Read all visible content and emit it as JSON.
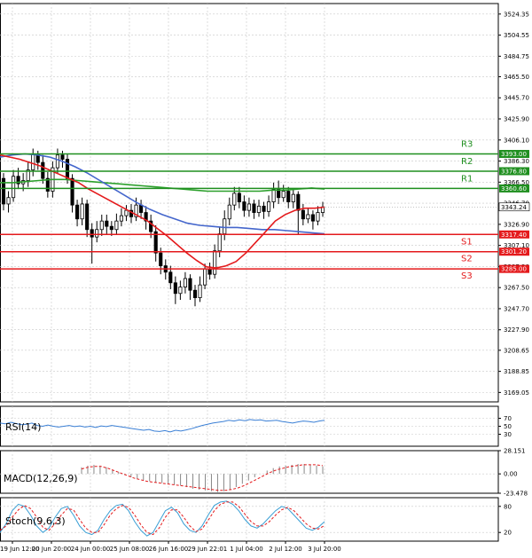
{
  "chart_data": {
    "type": "candlestick",
    "colors": {
      "up": "#ffffff",
      "down": "#000000",
      "wick": "#000000",
      "ma_fast": "#e41a1c",
      "ma_mid": "#2ca02c",
      "ma_slow": "#4466cc",
      "support": "#e41a1c",
      "resistance": "#1f8f1f",
      "grid": "#c8c8c8",
      "rsi": "#3a7fd5",
      "macd_signal": "#e41a1c",
      "macd_hist": "#888888",
      "stoch_k": "#3a9fd5",
      "stoch_d": "#e41a1c"
    },
    "price_axis": {
      "ylim": [
        3160.2,
        3534.2
      ],
      "ticks": [
        "3524.35",
        "3504.55",
        "3484.75",
        "3465.50",
        "3445.70",
        "3425.90",
        "3406.10",
        "3386.30",
        "3366.50",
        "3346.70",
        "3326.90",
        "3307.10",
        "3287.30",
        "3267.50",
        "3247.70",
        "3227.90",
        "3208.65",
        "3188.85",
        "3169.05"
      ],
      "current_price": "3343.24"
    },
    "time_labels": [
      "19 Jun 12:00",
      "20 Jun 20:00",
      "24 Jun 00:00",
      "25 Jun 08:00",
      "26 Jun 16:00",
      "29 Jun 22:01",
      "1 Jul 04:00",
      "2 Jul 12:00",
      "3 Jul 20:00"
    ],
    "levels": [
      {
        "name": "R3",
        "value": 3393.0,
        "label": "3393.00",
        "kind": "resistance"
      },
      {
        "name": "R2",
        "value": 3376.8,
        "label": "3376.80",
        "kind": "resistance"
      },
      {
        "name": "R1",
        "value": 3360.6,
        "label": "3360.60",
        "kind": "resistance"
      },
      {
        "name": "S1",
        "value": 3317.4,
        "label": "3317.40",
        "kind": "support"
      },
      {
        "name": "S2",
        "value": 3301.2,
        "label": "3301.20",
        "kind": "support"
      },
      {
        "name": "S3",
        "value": 3285.0,
        "label": "3285.00",
        "kind": "support"
      }
    ],
    "candles": [
      [
        3370,
        3346,
        3375,
        3340
      ],
      [
        3346,
        3352,
        3358,
        3338
      ],
      [
        3352,
        3372,
        3378,
        3348
      ],
      [
        3372,
        3365,
        3380,
        3360
      ],
      [
        3365,
        3368,
        3375,
        3358
      ],
      [
        3368,
        3378,
        3386,
        3362
      ],
      [
        3378,
        3393,
        3398,
        3372
      ],
      [
        3393,
        3385,
        3396,
        3378
      ],
      [
        3385,
        3370,
        3392,
        3365
      ],
      [
        3370,
        3358,
        3376,
        3352
      ],
      [
        3358,
        3380,
        3386,
        3352
      ],
      [
        3380,
        3392,
        3398,
        3375
      ],
      [
        3392,
        3388,
        3396,
        3380
      ],
      [
        3388,
        3370,
        3393,
        3365
      ],
      [
        3370,
        3345,
        3374,
        3338
      ],
      [
        3345,
        3332,
        3350,
        3325
      ],
      [
        3332,
        3346,
        3352,
        3326
      ],
      [
        3346,
        3322,
        3350,
        3315
      ],
      [
        3322,
        3315,
        3328,
        3290
      ],
      [
        3315,
        3322,
        3330,
        3310
      ],
      [
        3322,
        3330,
        3336,
        3316
      ],
      [
        3330,
        3325,
        3336,
        3318
      ],
      [
        3325,
        3322,
        3330,
        3316
      ],
      [
        3322,
        3330,
        3337,
        3318
      ],
      [
        3330,
        3335,
        3342,
        3325
      ],
      [
        3335,
        3340,
        3345,
        3330
      ],
      [
        3340,
        3334,
        3346,
        3328
      ],
      [
        3334,
        3345,
        3352,
        3330
      ],
      [
        3345,
        3338,
        3350,
        3332
      ],
      [
        3338,
        3330,
        3344,
        3322
      ],
      [
        3330,
        3320,
        3336,
        3314
      ],
      [
        3320,
        3300,
        3326,
        3292
      ],
      [
        3300,
        3288,
        3305,
        3280
      ],
      [
        3288,
        3282,
        3294,
        3275
      ],
      [
        3282,
        3272,
        3288,
        3266
      ],
      [
        3272,
        3262,
        3278,
        3252
      ],
      [
        3262,
        3268,
        3274,
        3256
      ],
      [
        3268,
        3276,
        3282,
        3262
      ],
      [
        3276,
        3265,
        3280,
        3256
      ],
      [
        3265,
        3258,
        3270,
        3250
      ],
      [
        3258,
        3270,
        3278,
        3254
      ],
      [
        3270,
        3285,
        3290,
        3266
      ],
      [
        3285,
        3280,
        3291,
        3275
      ],
      [
        3280,
        3302,
        3308,
        3276
      ],
      [
        3302,
        3318,
        3324,
        3296
      ],
      [
        3318,
        3332,
        3340,
        3312
      ],
      [
        3332,
        3345,
        3352,
        3326
      ],
      [
        3345,
        3356,
        3362,
        3340
      ],
      [
        3356,
        3348,
        3362,
        3342
      ],
      [
        3348,
        3340,
        3354,
        3334
      ],
      [
        3340,
        3346,
        3352,
        3334
      ],
      [
        3346,
        3338,
        3350,
        3332
      ],
      [
        3338,
        3344,
        3350,
        3334
      ],
      [
        3344,
        3339,
        3348,
        3332
      ],
      [
        3339,
        3348,
        3354,
        3334
      ],
      [
        3348,
        3360,
        3366,
        3342
      ],
      [
        3360,
        3352,
        3368,
        3346
      ],
      [
        3352,
        3358,
        3364,
        3348
      ],
      [
        3358,
        3348,
        3362,
        3342
      ],
      [
        3348,
        3355,
        3360,
        3342
      ],
      [
        3355,
        3340,
        3358,
        3318
      ],
      [
        3340,
        3332,
        3346,
        3326
      ],
      [
        3332,
        3336,
        3342,
        3328
      ],
      [
        3336,
        3330,
        3340,
        3322
      ],
      [
        3330,
        3338,
        3344,
        3326
      ],
      [
        3338,
        3343.24,
        3348,
        3334
      ]
    ],
    "ma_fast": [
      3392,
      3390,
      3388,
      3385,
      3382,
      3378,
      3374,
      3370,
      3366,
      3360,
      3355,
      3350,
      3345,
      3340,
      3335,
      3330,
      3323,
      3316,
      3308,
      3300,
      3293,
      3287,
      3286,
      3288,
      3292,
      3300,
      3310,
      3320,
      3330,
      3336,
      3340,
      3342,
      3342,
      3343
    ],
    "ma_mid": [
      3366,
      3366,
      3367,
      3368,
      3369,
      3369,
      3368,
      3367,
      3366,
      3365,
      3364,
      3363,
      3362,
      3361,
      3360,
      3359,
      3358,
      3358,
      3358,
      3358,
      3358,
      3359,
      3359,
      3360,
      3361,
      3360
    ],
    "ma_slow": [
      3390,
      3392,
      3393,
      3392,
      3390,
      3386,
      3381,
      3375,
      3368,
      3361,
      3354,
      3347,
      3341,
      3336,
      3332,
      3328,
      3326,
      3325,
      3324,
      3324,
      3323,
      3322,
      3322,
      3321,
      3320,
      3319,
      3318
    ],
    "rsi": {
      "label": "RSI(14)",
      "ylim": [
        0,
        100
      ],
      "ticks": [
        "70",
        "50",
        "30"
      ],
      "levels": [
        70,
        50,
        30
      ],
      "values": [
        58,
        56,
        60,
        57,
        54,
        55,
        58,
        52,
        50,
        53,
        50,
        48,
        50,
        52,
        49,
        51,
        48,
        50,
        47,
        51,
        49,
        52,
        50,
        48,
        46,
        44,
        42,
        40,
        42,
        38,
        37,
        39,
        36,
        40,
        38,
        41,
        44,
        48,
        52,
        55,
        58,
        60,
        62,
        65,
        63,
        66,
        64,
        67,
        65,
        66,
        63,
        64,
        65,
        62,
        60,
        58,
        61,
        63,
        62,
        60,
        63,
        65
      ]
    },
    "macd": {
      "label": "MACD(12,26,9)",
      "ylim": [
        -23.478,
        28.151
      ],
      "ticks": [
        "28.151",
        "0.00",
        "-23.478"
      ],
      "hist": [
        8,
        10,
        11,
        10,
        8,
        5,
        2,
        -1,
        -4,
        -6,
        -8,
        -9,
        -10,
        -11,
        -12,
        -13,
        -14,
        -16,
        -18,
        -19,
        -20,
        -21,
        -22,
        -21,
        -19,
        -16,
        -12,
        -8,
        -4,
        0,
        4,
        7,
        9,
        10,
        11,
        12,
        12,
        11,
        10,
        9
      ],
      "signal": [
        6,
        8,
        9,
        9,
        7,
        4,
        1,
        -2,
        -5,
        -7,
        -9,
        -10,
        -11,
        -12,
        -13,
        -14,
        -15,
        -16,
        -17,
        -18,
        -19,
        -20,
        -20,
        -19,
        -17,
        -14,
        -10,
        -6,
        -2,
        2,
        5,
        7,
        9,
        10,
        11,
        11,
        11,
        10
      ]
    },
    "stoch": {
      "label": "Stoch(9,6,3)",
      "ylim": [
        0,
        100
      ],
      "ticks": [
        "80",
        "20"
      ],
      "levels": [
        80,
        20
      ],
      "k": [
        20,
        40,
        70,
        85,
        80,
        60,
        35,
        20,
        30,
        55,
        75,
        80,
        60,
        35,
        20,
        15,
        25,
        50,
        70,
        82,
        85,
        70,
        45,
        25,
        12,
        20,
        45,
        70,
        78,
        65,
        40,
        25,
        20,
        35,
        60,
        82,
        90,
        92,
        85,
        70,
        50,
        35,
        30,
        40,
        55,
        70,
        80,
        75,
        60,
        45,
        30,
        25,
        32,
        45
      ],
      "d": [
        25,
        35,
        55,
        72,
        82,
        75,
        55,
        32,
        25,
        40,
        60,
        75,
        72,
        50,
        30,
        20,
        20,
        38,
        60,
        75,
        82,
        78,
        60,
        38,
        20,
        15,
        30,
        55,
        72,
        72,
        55,
        35,
        22,
        28,
        48,
        70,
        85,
        90,
        90,
        80,
        62,
        45,
        35,
        35,
        45,
        60,
        72,
        78,
        70,
        55,
        40,
        30,
        28,
        36
      ]
    }
  }
}
